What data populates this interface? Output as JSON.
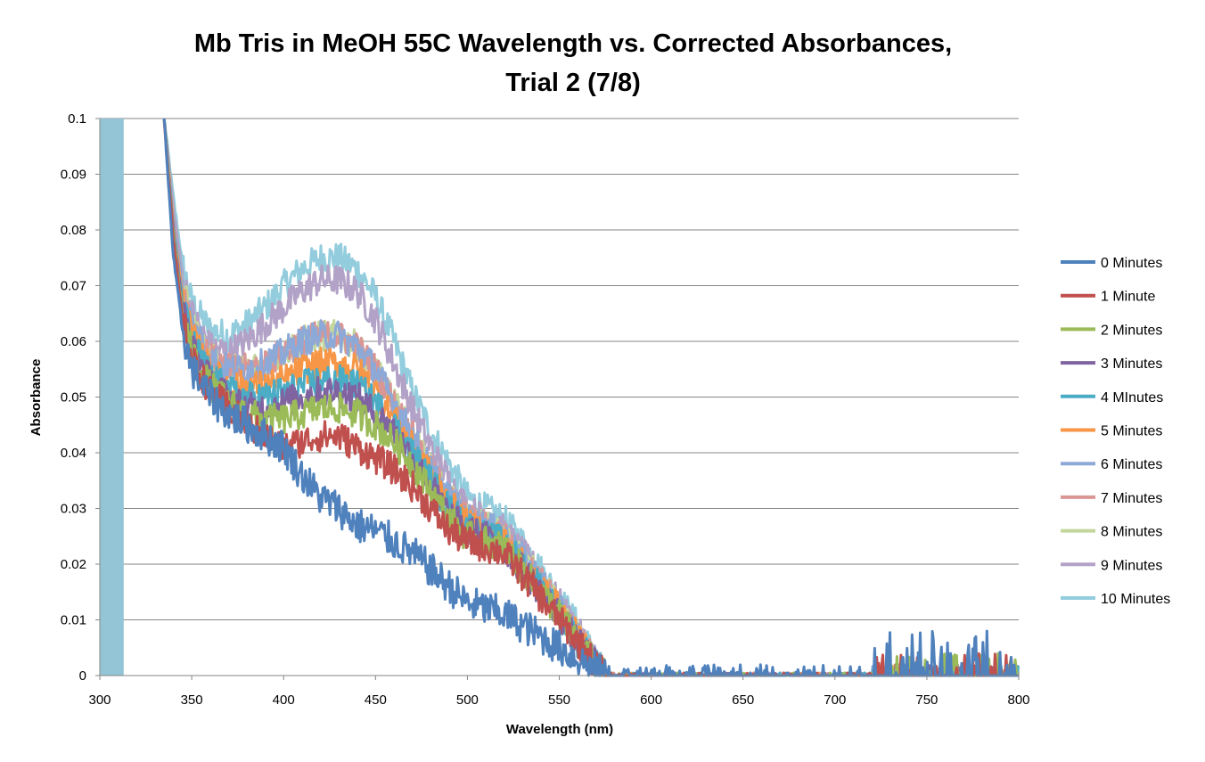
{
  "chart_data": {
    "type": "line",
    "title_line1": "Mb Tris in MeOH 55C Wavelength vs. Corrected Absorbances,",
    "title_line2": "Trial 2 (7/8)",
    "xlabel": "Wavelength (nm)",
    "ylabel": "Absorbance",
    "xlim": [
      300,
      800
    ],
    "ylim": [
      0,
      0.1
    ],
    "x_ticks": [
      "300",
      "350",
      "400",
      "450",
      "500",
      "550",
      "600",
      "650",
      "700",
      "750",
      "800"
    ],
    "y_ticks": [
      "0",
      "0.01",
      "0.02",
      "0.03",
      "0.04",
      "0.05",
      "0.06",
      "0.07",
      "0.08",
      "0.09",
      "0.1"
    ],
    "grid": true,
    "legend_position": "right",
    "baseline_bar": {
      "x_start": 300,
      "x_end": 313,
      "value": 0.1,
      "color": "#93C5D6"
    },
    "series": [
      {
        "name": "0 Minutes",
        "color": "#4F81BD",
        "x": [
          335,
          340,
          345,
          350,
          360,
          370,
          380,
          390,
          400,
          410,
          420,
          430,
          440,
          450,
          460,
          470,
          480,
          490,
          500,
          510,
          520,
          530,
          540,
          550,
          560,
          570,
          575
        ],
        "y": [
          0.1,
          0.075,
          0.062,
          0.055,
          0.05,
          0.047,
          0.045,
          0.043,
          0.041,
          0.036,
          0.032,
          0.03,
          0.027,
          0.026,
          0.024,
          0.022,
          0.019,
          0.016,
          0.013,
          0.012,
          0.011,
          0.009,
          0.007,
          0.005,
          0.003,
          0.001,
          0.0
        ]
      },
      {
        "name": "1 Minute",
        "color": "#C0504D",
        "x": [
          335,
          340,
          345,
          350,
          360,
          370,
          380,
          390,
          400,
          410,
          420,
          430,
          440,
          450,
          460,
          470,
          480,
          490,
          500,
          510,
          520,
          530,
          540,
          550,
          560,
          570,
          575
        ],
        "y": [
          0.1,
          0.078,
          0.064,
          0.057,
          0.051,
          0.048,
          0.045,
          0.043,
          0.041,
          0.042,
          0.043,
          0.043,
          0.041,
          0.039,
          0.037,
          0.034,
          0.03,
          0.026,
          0.024,
          0.023,
          0.022,
          0.018,
          0.014,
          0.01,
          0.006,
          0.002,
          0.0
        ]
      },
      {
        "name": "2 Minutes",
        "color": "#9BBB59",
        "x": [
          335,
          340,
          345,
          350,
          360,
          370,
          380,
          390,
          400,
          410,
          420,
          430,
          440,
          450,
          460,
          470,
          480,
          490,
          500,
          510,
          520,
          530,
          540,
          550,
          560,
          570,
          575
        ],
        "y": [
          0.1,
          0.079,
          0.065,
          0.058,
          0.052,
          0.049,
          0.047,
          0.046,
          0.046,
          0.047,
          0.048,
          0.048,
          0.047,
          0.045,
          0.042,
          0.038,
          0.033,
          0.028,
          0.025,
          0.024,
          0.023,
          0.019,
          0.015,
          0.011,
          0.006,
          0.002,
          0.0
        ]
      },
      {
        "name": "3 Minutes",
        "color": "#8064A2",
        "x": [
          335,
          340,
          345,
          350,
          360,
          370,
          380,
          390,
          400,
          410,
          420,
          430,
          440,
          450,
          460,
          470,
          480,
          490,
          500,
          510,
          520,
          530,
          540,
          550,
          560,
          570,
          575
        ],
        "y": [
          0.1,
          0.08,
          0.066,
          0.059,
          0.053,
          0.05,
          0.048,
          0.048,
          0.049,
          0.05,
          0.051,
          0.051,
          0.05,
          0.047,
          0.044,
          0.039,
          0.034,
          0.029,
          0.026,
          0.025,
          0.023,
          0.019,
          0.015,
          0.011,
          0.006,
          0.002,
          0.0
        ]
      },
      {
        "name": "4 MInutes",
        "color": "#4BACC6",
        "x": [
          335,
          340,
          345,
          350,
          360,
          370,
          380,
          390,
          400,
          410,
          420,
          430,
          440,
          450,
          460,
          470,
          480,
          490,
          500,
          510,
          520,
          530,
          540,
          550,
          560,
          570,
          575
        ],
        "y": [
          0.1,
          0.08,
          0.067,
          0.06,
          0.054,
          0.051,
          0.05,
          0.05,
          0.051,
          0.052,
          0.053,
          0.053,
          0.052,
          0.049,
          0.045,
          0.04,
          0.035,
          0.03,
          0.027,
          0.025,
          0.024,
          0.02,
          0.016,
          0.011,
          0.006,
          0.002,
          0.0
        ]
      },
      {
        "name": "5 Minutes",
        "color": "#F79646",
        "x": [
          335,
          340,
          345,
          350,
          360,
          370,
          380,
          390,
          400,
          410,
          420,
          430,
          440,
          450,
          460,
          470,
          480,
          490,
          500,
          510,
          520,
          530,
          540,
          550,
          560,
          570,
          575
        ],
        "y": [
          0.1,
          0.081,
          0.068,
          0.061,
          0.055,
          0.052,
          0.052,
          0.052,
          0.053,
          0.055,
          0.056,
          0.056,
          0.055,
          0.051,
          0.046,
          0.041,
          0.036,
          0.031,
          0.027,
          0.026,
          0.024,
          0.02,
          0.016,
          0.012,
          0.007,
          0.002,
          0.0
        ]
      },
      {
        "name": "6 Minutes",
        "color": "#8DA9D8",
        "x": [
          335,
          340,
          345,
          350,
          360,
          370,
          380,
          390,
          400,
          410,
          420,
          430,
          440,
          450,
          460,
          470,
          480,
          490,
          500,
          510,
          520,
          530,
          540,
          550,
          560,
          570,
          575
        ],
        "y": [
          0.1,
          0.082,
          0.07,
          0.063,
          0.057,
          0.055,
          0.055,
          0.056,
          0.058,
          0.06,
          0.061,
          0.061,
          0.059,
          0.055,
          0.049,
          0.043,
          0.037,
          0.032,
          0.028,
          0.027,
          0.025,
          0.021,
          0.017,
          0.012,
          0.007,
          0.002,
          0.0
        ]
      },
      {
        "name": "7 Minutes",
        "color": "#D99694",
        "x": [
          335,
          340,
          345,
          350,
          360,
          370,
          380,
          390,
          400,
          410,
          420,
          430,
          440,
          450,
          460,
          470,
          480,
          490,
          500,
          510,
          520,
          530,
          540,
          550,
          560,
          570,
          575
        ],
        "y": [
          0.1,
          0.082,
          0.07,
          0.063,
          0.057,
          0.055,
          0.055,
          0.056,
          0.058,
          0.06,
          0.061,
          0.061,
          0.059,
          0.055,
          0.049,
          0.043,
          0.037,
          0.032,
          0.028,
          0.027,
          0.025,
          0.021,
          0.017,
          0.012,
          0.007,
          0.002,
          0.0
        ]
      },
      {
        "name": "8 Minutes",
        "color": "#C3D69B",
        "x": [
          335,
          340,
          345,
          350,
          360,
          370,
          380,
          390,
          400,
          410,
          420,
          430,
          440,
          450,
          460,
          470,
          480,
          490,
          500,
          510,
          520,
          530,
          540,
          550,
          560,
          570,
          575
        ],
        "y": [
          0.1,
          0.082,
          0.07,
          0.063,
          0.057,
          0.055,
          0.055,
          0.056,
          0.058,
          0.06,
          0.061,
          0.061,
          0.059,
          0.055,
          0.049,
          0.043,
          0.037,
          0.032,
          0.028,
          0.027,
          0.025,
          0.021,
          0.017,
          0.012,
          0.007,
          0.002,
          0.0
        ]
      },
      {
        "name": "9 Minutes",
        "color": "#B3A2C7",
        "x": [
          335,
          340,
          345,
          350,
          360,
          370,
          380,
          390,
          400,
          410,
          420,
          430,
          440,
          450,
          460,
          470,
          480,
          490,
          500,
          510,
          520,
          530,
          540,
          550,
          560,
          570,
          575
        ],
        "y": [
          0.1,
          0.084,
          0.072,
          0.065,
          0.059,
          0.058,
          0.06,
          0.063,
          0.066,
          0.069,
          0.071,
          0.071,
          0.069,
          0.064,
          0.056,
          0.048,
          0.041,
          0.035,
          0.03,
          0.028,
          0.026,
          0.022,
          0.018,
          0.013,
          0.008,
          0.003,
          0.0
        ]
      },
      {
        "name": "10 Minutes",
        "color": "#93CDDD",
        "x": [
          335,
          340,
          345,
          350,
          360,
          370,
          380,
          390,
          400,
          410,
          420,
          430,
          440,
          450,
          460,
          470,
          480,
          490,
          500,
          510,
          520,
          530,
          540,
          550,
          560,
          570,
          575
        ],
        "y": [
          0.1,
          0.086,
          0.074,
          0.067,
          0.062,
          0.061,
          0.063,
          0.066,
          0.07,
          0.073,
          0.075,
          0.075,
          0.073,
          0.068,
          0.06,
          0.051,
          0.044,
          0.038,
          0.032,
          0.03,
          0.028,
          0.024,
          0.019,
          0.014,
          0.009,
          0.003,
          0.0
        ]
      }
    ],
    "tail_noise": {
      "x_range": [
        575,
        800
      ],
      "y_range": [
        0,
        0.009
      ],
      "note_series": "0 Minutes"
    }
  }
}
